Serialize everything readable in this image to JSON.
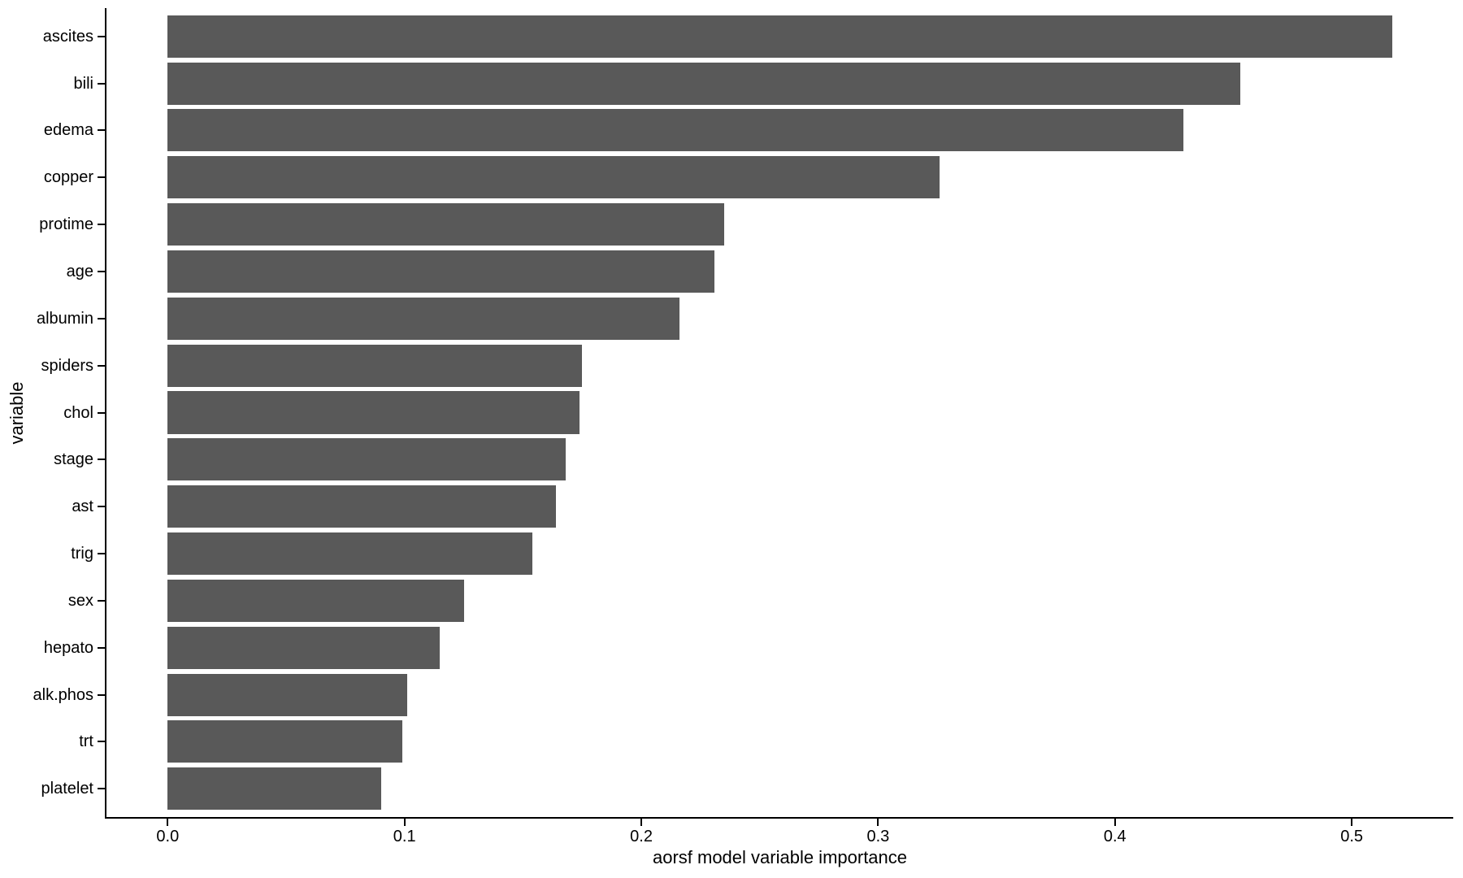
{
  "chart_data": {
    "type": "bar",
    "orientation": "horizontal",
    "title": "",
    "xlabel": "aorsf model variable importance",
    "ylabel": "variable",
    "categories": [
      "ascites",
      "bili",
      "edema",
      "copper",
      "protime",
      "age",
      "albumin",
      "spiders",
      "chol",
      "stage",
      "ast",
      "trig",
      "sex",
      "hepato",
      "alk.phos",
      "trt",
      "platelet"
    ],
    "values": [
      0.517,
      0.453,
      0.429,
      0.326,
      0.235,
      0.231,
      0.216,
      0.175,
      0.174,
      0.168,
      0.164,
      0.154,
      0.125,
      0.115,
      0.101,
      0.099,
      0.09
    ],
    "x_ticks": [
      0.0,
      0.1,
      0.2,
      0.3,
      0.4,
      0.5
    ],
    "x_tick_labels": [
      "0.0",
      "0.1",
      "0.2",
      "0.3",
      "0.4",
      "0.5"
    ],
    "xlim": [
      0,
      0.545
    ],
    "bar_width_frac": 0.9,
    "bar_color": "#595959",
    "axis_color": "#000000",
    "text_color": "#000000",
    "background": "#ffffff",
    "grid": false,
    "legend": false
  }
}
